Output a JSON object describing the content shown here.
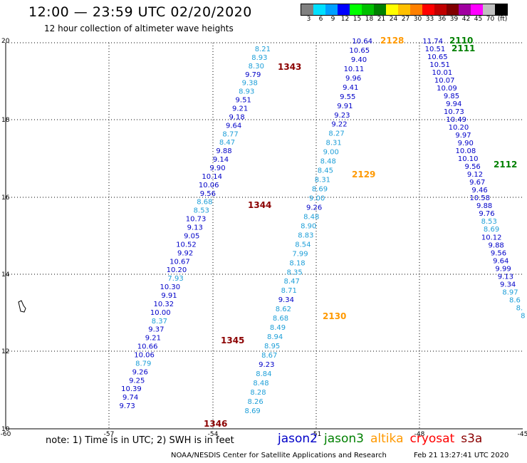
{
  "header": {
    "title": "12:00 — 23:59 UTC 02/20/2020",
    "subtitle": "12 hour collection of altimeter wave heights"
  },
  "colorbar": {
    "colors": [
      "#808080",
      "#00e0ff",
      "#00a0ff",
      "#0000ff",
      "#00ff00",
      "#00c000",
      "#008000",
      "#ffff00",
      "#ffc000",
      "#ff8000",
      "#ff0000",
      "#c00000",
      "#800000",
      "#a000a0",
      "#ff00ff",
      "#c0c0c0",
      "#000000"
    ],
    "labels": [
      "3",
      "6",
      "9",
      "12",
      "15",
      "18",
      "21",
      "24",
      "27",
      "30",
      "33",
      "36",
      "39",
      "42",
      "45",
      "70",
      "(ft)"
    ]
  },
  "map": {
    "lon_ticks": [
      "-60",
      "-57",
      "-54",
      "-51",
      "-48",
      "-45"
    ],
    "lat_ticks": [
      "20",
      "18",
      "16",
      "14",
      "12",
      "10"
    ],
    "colors": {
      "jason2": "#0000c8",
      "jason3": "#008000",
      "altika": "#ff9900",
      "cryosat": "#ff0000",
      "s3a": "#8b0000",
      "light": "#1e9fd8"
    },
    "tracks": [
      {
        "id": "track-a",
        "points": [
          {
            "t": "8.21",
            "c": "light"
          },
          {
            "t": "8.93",
            "c": "light"
          },
          {
            "t": "8.30",
            "c": "light"
          },
          {
            "t": "9.79",
            "c": "dark"
          },
          {
            "t": "9.38",
            "c": "light"
          },
          {
            "t": "8.93",
            "c": "light"
          },
          {
            "t": "9.51",
            "c": "dark"
          },
          {
            "t": "9.21",
            "c": "dark"
          },
          {
            "t": "9.18",
            "c": "dark"
          },
          {
            "t": "9.64",
            "c": "dark"
          },
          {
            "t": "8.77",
            "c": "light"
          },
          {
            "t": "8.47",
            "c": "light"
          },
          {
            "t": "9.88",
            "c": "dark"
          },
          {
            "t": "9.14",
            "c": "dark"
          },
          {
            "t": "9.90",
            "c": "dark"
          },
          {
            "t": "10.14",
            "c": "dark"
          },
          {
            "t": "10.06",
            "c": "dark"
          },
          {
            "t": "9.56",
            "c": "dark"
          },
          {
            "t": "8.68",
            "c": "light"
          },
          {
            "t": "8.53",
            "c": "light"
          },
          {
            "t": "10.73",
            "c": "dark"
          },
          {
            "t": "9.13",
            "c": "dark"
          },
          {
            "t": "9.05",
            "c": "dark"
          },
          {
            "t": "10.52",
            "c": "dark"
          },
          {
            "t": "9.92",
            "c": "dark"
          },
          {
            "t": "10.67",
            "c": "dark"
          },
          {
            "t": "10.20",
            "c": "dark"
          },
          {
            "t": "7.93",
            "c": "light"
          },
          {
            "t": "10.30",
            "c": "dark"
          },
          {
            "t": "9.91",
            "c": "dark"
          },
          {
            "t": "10.32",
            "c": "dark"
          },
          {
            "t": "10.00",
            "c": "dark"
          },
          {
            "t": "8.37",
            "c": "light"
          },
          {
            "t": "9.37",
            "c": "dark"
          },
          {
            "t": "9.21",
            "c": "dark"
          },
          {
            "t": "10.66",
            "c": "dark"
          },
          {
            "t": "10.06",
            "c": "dark"
          },
          {
            "t": "8.79",
            "c": "light"
          },
          {
            "t": "9.26",
            "c": "dark"
          },
          {
            "t": "9.25",
            "c": "dark"
          },
          {
            "t": "10.39",
            "c": "dark"
          },
          {
            "t": "9.74",
            "c": "dark"
          },
          {
            "t": "9.73",
            "c": "dark"
          }
        ],
        "passes": [
          {
            "t": "1343",
            "c": "s3a"
          },
          {
            "t": "1344",
            "c": "s3a"
          },
          {
            "t": "1345",
            "c": "s3a"
          },
          {
            "t": "1346",
            "c": "s3a"
          }
        ]
      },
      {
        "id": "track-b",
        "points": [
          {
            "t": "10.64",
            "c": "dark"
          },
          {
            "t": "10.65",
            "c": "dark"
          },
          {
            "t": "9.40",
            "c": "dark"
          },
          {
            "t": "10.11",
            "c": "dark"
          },
          {
            "t": "9.96",
            "c": "dark"
          },
          {
            "t": "9.41",
            "c": "dark"
          },
          {
            "t": "9.55",
            "c": "dark"
          },
          {
            "t": "9.91",
            "c": "dark"
          },
          {
            "t": "9.23",
            "c": "dark"
          },
          {
            "t": "9.22",
            "c": "dark"
          },
          {
            "t": "8.27",
            "c": "light"
          },
          {
            "t": "8.31",
            "c": "light"
          },
          {
            "t": "9.00",
            "c": "light"
          },
          {
            "t": "8.48",
            "c": "light"
          },
          {
            "t": "8.45",
            "c": "light"
          },
          {
            "t": "8.31",
            "c": "light"
          },
          {
            "t": "8.69",
            "c": "light"
          },
          {
            "t": "9.00",
            "c": "light"
          },
          {
            "t": "9.26",
            "c": "dark"
          },
          {
            "t": "8.48",
            "c": "light"
          },
          {
            "t": "8.90",
            "c": "light"
          },
          {
            "t": "8.83",
            "c": "light"
          },
          {
            "t": "8.54",
            "c": "light"
          },
          {
            "t": "7.99",
            "c": "light"
          },
          {
            "t": "8.18",
            "c": "light"
          },
          {
            "t": "8.35",
            "c": "light"
          },
          {
            "t": "8.47",
            "c": "light"
          },
          {
            "t": "8.71",
            "c": "light"
          },
          {
            "t": "9.34",
            "c": "dark"
          },
          {
            "t": "8.62",
            "c": "light"
          },
          {
            "t": "8.68",
            "c": "light"
          },
          {
            "t": "8.49",
            "c": "light"
          },
          {
            "t": "8.94",
            "c": "light"
          },
          {
            "t": "8.95",
            "c": "light"
          },
          {
            "t": "8.67",
            "c": "light"
          },
          {
            "t": "9.23",
            "c": "dark"
          },
          {
            "t": "8.84",
            "c": "light"
          },
          {
            "t": "8.48",
            "c": "light"
          },
          {
            "t": "8.28",
            "c": "light"
          },
          {
            "t": "8.26",
            "c": "light"
          },
          {
            "t": "8.69",
            "c": "light"
          }
        ],
        "passes": [
          {
            "t": "2128",
            "c": "altika"
          },
          {
            "t": "2129",
            "c": "altika"
          },
          {
            "t": "2130",
            "c": "altika"
          }
        ]
      },
      {
        "id": "track-c",
        "points": [
          {
            "t": "11.74",
            "c": "dark"
          },
          {
            "t": "10.51",
            "c": "dark"
          },
          {
            "t": "10.65",
            "c": "dark"
          },
          {
            "t": "10.51",
            "c": "dark"
          },
          {
            "t": "10.01",
            "c": "dark"
          },
          {
            "t": "10.07",
            "c": "dark"
          },
          {
            "t": "10.09",
            "c": "dark"
          },
          {
            "t": "9.85",
            "c": "dark"
          },
          {
            "t": "9.94",
            "c": "dark"
          },
          {
            "t": "10.73",
            "c": "dark"
          },
          {
            "t": "10.49",
            "c": "dark"
          },
          {
            "t": "10.20",
            "c": "dark"
          },
          {
            "t": "9.97",
            "c": "dark"
          },
          {
            "t": "9.90",
            "c": "dark"
          },
          {
            "t": "10.08",
            "c": "dark"
          },
          {
            "t": "10.10",
            "c": "dark"
          },
          {
            "t": "9.56",
            "c": "dark"
          },
          {
            "t": "9.12",
            "c": "dark"
          },
          {
            "t": "9.67",
            "c": "dark"
          },
          {
            "t": "9.46",
            "c": "dark"
          },
          {
            "t": "10.58",
            "c": "dark"
          },
          {
            "t": "9.88",
            "c": "dark"
          },
          {
            "t": "9.76",
            "c": "dark"
          },
          {
            "t": "8.53",
            "c": "light"
          },
          {
            "t": "8.69",
            "c": "light"
          },
          {
            "t": "10.12",
            "c": "dark"
          },
          {
            "t": "9.88",
            "c": "dark"
          },
          {
            "t": "9.56",
            "c": "dark"
          },
          {
            "t": "9.64",
            "c": "dark"
          },
          {
            "t": "9.99",
            "c": "dark"
          },
          {
            "t": "9.13",
            "c": "dark"
          },
          {
            "t": "9.34",
            "c": "dark"
          },
          {
            "t": "8.97",
            "c": "light"
          },
          {
            "t": "8.6",
            "c": "light"
          },
          {
            "t": "8.",
            "c": "light"
          },
          {
            "t": "8",
            "c": "light"
          }
        ],
        "passes": [
          {
            "t": "2110",
            "c": "jason3"
          },
          {
            "t": "2111",
            "c": "jason3"
          },
          {
            "t": "2112",
            "c": "jason3"
          }
        ]
      }
    ]
  },
  "footer": {
    "note": "note: 1) Time is in UTC; 2) SWH is in feet",
    "legend": [
      {
        "t": "jason2",
        "c": "#0000c8"
      },
      {
        "t": "jason3",
        "c": "#008000"
      },
      {
        "t": "altika",
        "c": "#ff9900"
      },
      {
        "t": "cryosat",
        "c": "#ff0000"
      },
      {
        "t": "s3a",
        "c": "#8b0000"
      }
    ],
    "credit": "NOAA/NESDIS Center for Satellite Applications and Research",
    "timestamp": "Feb 21 13:27:41 UTC 2020"
  }
}
